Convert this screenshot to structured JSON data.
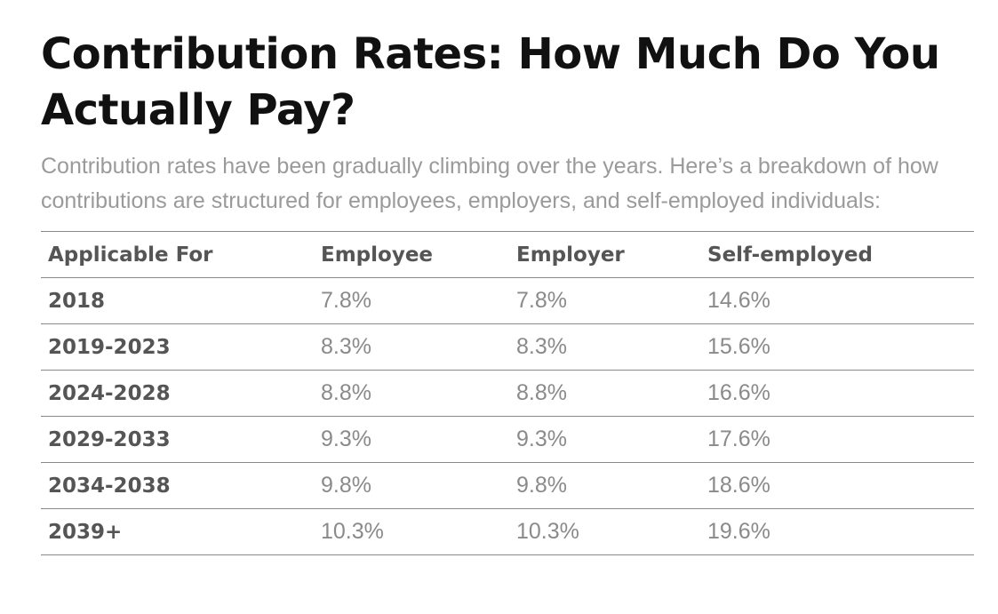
{
  "title": "Contribution Rates: How Much Do You Actually Pay?",
  "intro": "Contribution rates have been gradually climbing over the years. Here’s a breakdown of how contributions are structured for employees, employers, and self-employed individuals:",
  "table": {
    "headers": [
      "Applicable For",
      "Employee",
      "Employer",
      "Self-employed"
    ],
    "rows": [
      [
        "2018",
        "7.8%",
        "7.8%",
        "14.6%"
      ],
      [
        "2019-2023",
        "8.3%",
        "8.3%",
        "15.6%"
      ],
      [
        "2024-2028",
        "8.8%",
        "8.8%",
        "16.6%"
      ],
      [
        "2029-2033",
        "9.3%",
        "9.3%",
        "17.6%"
      ],
      [
        "2034-2038",
        "9.8%",
        "9.8%",
        "18.6%"
      ],
      [
        "2039+",
        "10.3%",
        "10.3%",
        "19.6%"
      ]
    ]
  }
}
